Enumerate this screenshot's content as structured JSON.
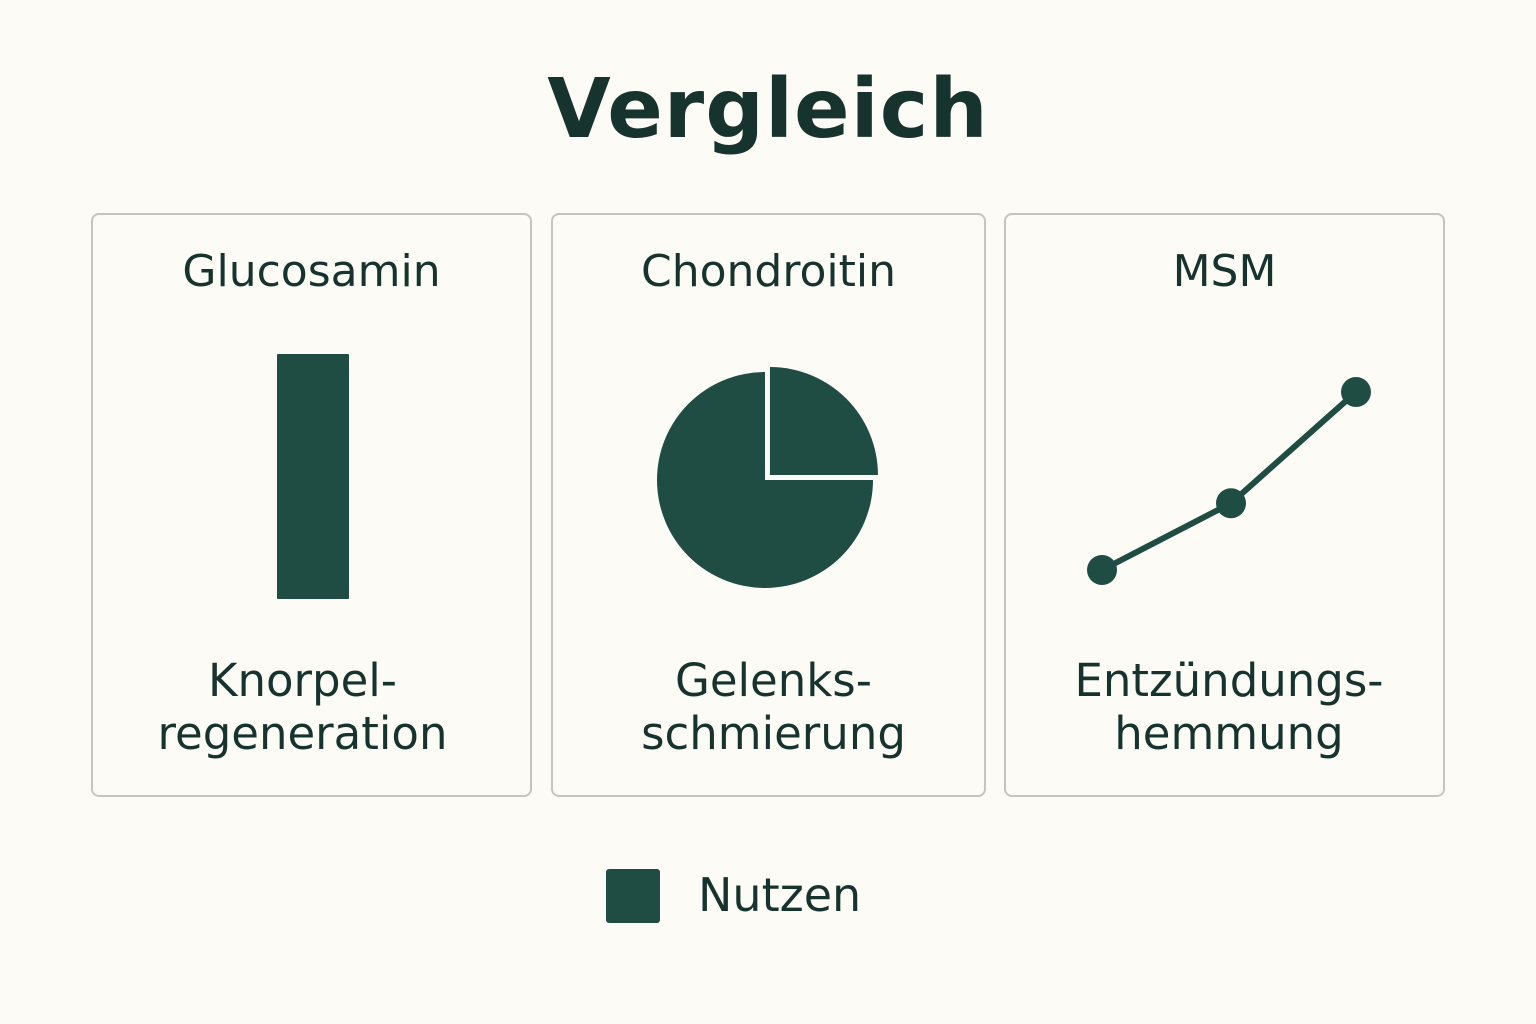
{
  "title": "Vergleich",
  "colors": {
    "accent": "#1f4d44",
    "background": "#fcfbf6",
    "text": "#17332d",
    "border": "#c4c4c0"
  },
  "legend": {
    "label": "Nutzen"
  },
  "cards": [
    {
      "title": "Glucosamin",
      "label_line1": "Knorpel-",
      "label_line2": "regeneration"
    },
    {
      "title": "Chondroitin",
      "label_line1": "Gelenks-",
      "label_line2": "schmierung"
    },
    {
      "title": "MSM",
      "label_line1": "Entzündungs-",
      "label_line2": "hemmung"
    }
  ],
  "chart_data": [
    {
      "type": "bar",
      "categories": [
        "Glucosamin"
      ],
      "values": [
        1
      ],
      "legend": "Nutzen"
    },
    {
      "type": "pie",
      "values": [
        25,
        75
      ],
      "exploded": [
        true,
        false
      ]
    },
    {
      "type": "line",
      "x": [
        1,
        2,
        3
      ],
      "values": [
        1,
        1.6,
        2.6
      ],
      "markers": true
    }
  ]
}
